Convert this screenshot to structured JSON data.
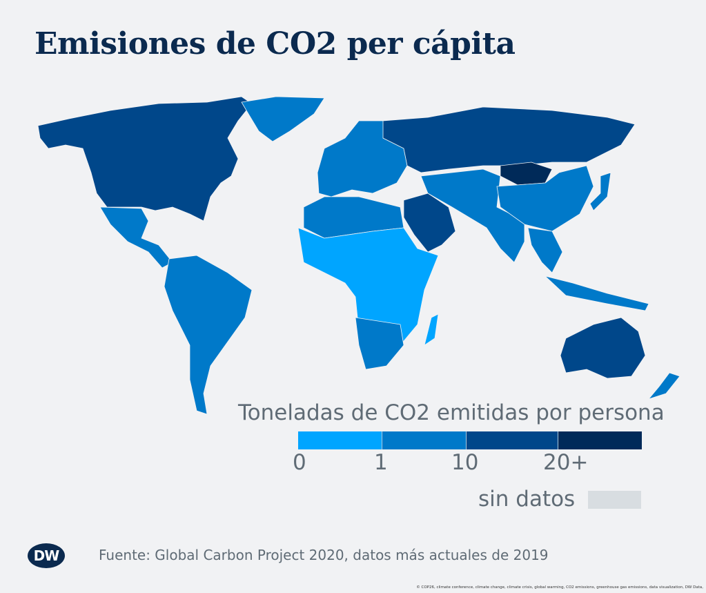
{
  "title": "Emisiones de CO2 per cápita",
  "legend": {
    "title": "Toneladas de CO2 emitidas por persona",
    "ticks": [
      "0",
      "1",
      "10",
      "20+"
    ],
    "colors": [
      "#00a5ff",
      "#0079c9",
      "#00478a",
      "#002a59"
    ],
    "no_data_label": "sin datos",
    "no_data_color": "#d8dde1"
  },
  "logo": "DW",
  "source": "Fuente: Global Carbon Project 2020, datos más actuales de 2019",
  "tags": "© COP26, climate conference, climate change, climate crisis, global warming, CO2 emissions, greenhouse gas emissions, data visualization, DW Data,"
}
